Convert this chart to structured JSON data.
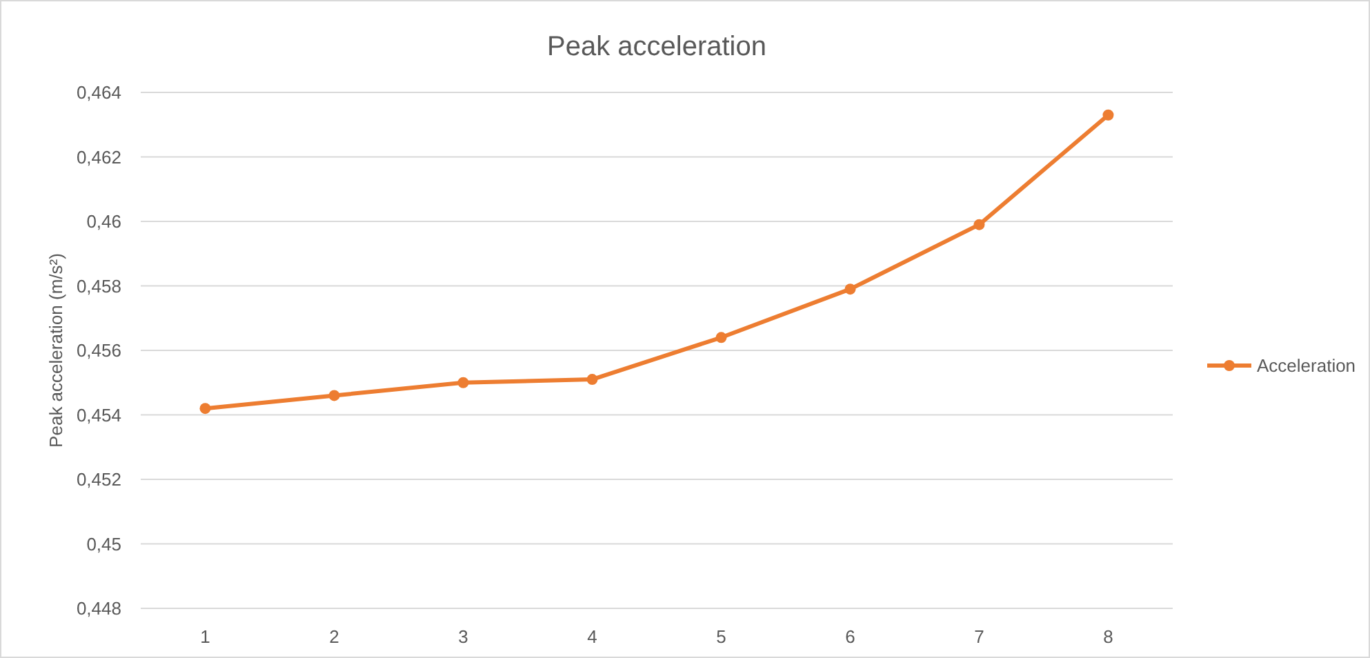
{
  "chart_data": {
    "type": "line",
    "title": "Peak acceleration",
    "ylabel": "Peak acceleration (m/s²)",
    "categories": [
      "1",
      "2",
      "3",
      "4",
      "5",
      "6",
      "7",
      "8"
    ],
    "series": [
      {
        "name": "Acceleration",
        "color": "#ed7d31",
        "values": [
          0.4542,
          0.4546,
          0.455,
          0.4551,
          0.4564,
          0.4579,
          0.4599,
          0.4633
        ]
      }
    ],
    "ylim": [
      0.448,
      0.464
    ],
    "yticks": [
      {
        "value": 0.448,
        "label": "0,448"
      },
      {
        "value": 0.45,
        "label": "0,45"
      },
      {
        "value": 0.452,
        "label": "0,452"
      },
      {
        "value": 0.454,
        "label": "0,454"
      },
      {
        "value": 0.456,
        "label": "0,456"
      },
      {
        "value": 0.458,
        "label": "0,458"
      },
      {
        "value": 0.46,
        "label": "0,46"
      },
      {
        "value": 0.462,
        "label": "0,462"
      },
      {
        "value": 0.464,
        "label": "0,464"
      }
    ],
    "grid": "y",
    "legend": "right",
    "marker": "circle",
    "line_style": "solid"
  }
}
